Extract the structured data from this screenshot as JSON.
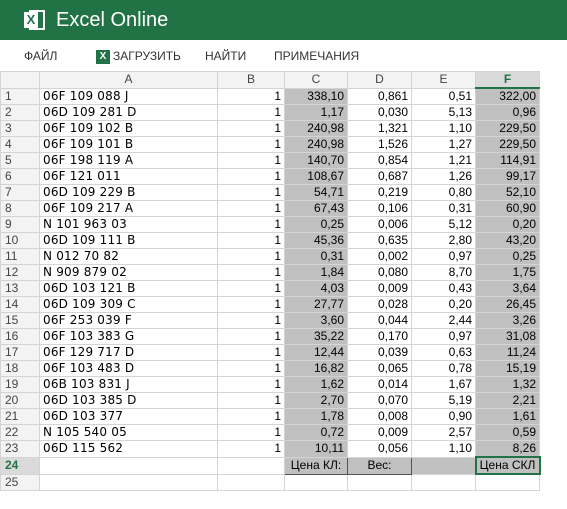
{
  "app": {
    "title": "Excel Online",
    "logo_letter": "X"
  },
  "ribbon": {
    "file": "ФАЙЛ",
    "download": "ЗАГРУЗИТЬ",
    "find": "НАЙТИ",
    "notes": "ПРИМЕЧАНИЯ"
  },
  "columns": [
    "A",
    "B",
    "C",
    "D",
    "E",
    "F"
  ],
  "selected_column": "F",
  "rows": [
    {
      "n": "1",
      "a": "06F 109 088 J",
      "b": "1",
      "c": "338,10",
      "d": "0,861",
      "e": "0,51",
      "f": "322,00"
    },
    {
      "n": "2",
      "a": "06D 109 281 D",
      "b": "1",
      "c": "1,17",
      "d": "0,030",
      "e": "5,13",
      "f": "0,96"
    },
    {
      "n": "3",
      "a": "06F 109 102 B",
      "b": "1",
      "c": "240,98",
      "d": "1,321",
      "e": "1,10",
      "f": "229,50"
    },
    {
      "n": "4",
      "a": "06F 109 101 B",
      "b": "1",
      "c": "240,98",
      "d": "1,526",
      "e": "1,27",
      "f": "229,50"
    },
    {
      "n": "5",
      "a": "06F 198 119 A",
      "b": "1",
      "c": "140,70",
      "d": "0,854",
      "e": "1,21",
      "f": "114,91"
    },
    {
      "n": "6",
      "a": "06F 121 011",
      "b": "1",
      "c": "108,67",
      "d": "0,687",
      "e": "1,26",
      "f": "99,17"
    },
    {
      "n": "7",
      "a": "06D 109 229 B",
      "b": "1",
      "c": "54,71",
      "d": "0,219",
      "e": "0,80",
      "f": "52,10"
    },
    {
      "n": "8",
      "a": "06F 109 217 A",
      "b": "1",
      "c": "67,43",
      "d": "0,106",
      "e": "0,31",
      "f": "60,90"
    },
    {
      "n": "9",
      "a": "N 101 963 03",
      "b": "1",
      "c": "0,25",
      "d": "0,006",
      "e": "5,12",
      "f": "0,20"
    },
    {
      "n": "10",
      "a": "06D 109 111 B",
      "b": "1",
      "c": "45,36",
      "d": "0,635",
      "e": "2,80",
      "f": "43,20"
    },
    {
      "n": "11",
      "a": "N 012 70 82",
      "b": "1",
      "c": "0,31",
      "d": "0,002",
      "e": "0,97",
      "f": "0,25"
    },
    {
      "n": "12",
      "a": "N 909 879 02",
      "b": "1",
      "c": "1,84",
      "d": "0,080",
      "e": "8,70",
      "f": "1,75"
    },
    {
      "n": "13",
      "a": "06D 103 121 B",
      "b": "1",
      "c": "4,03",
      "d": "0,009",
      "e": "0,43",
      "f": "3,64"
    },
    {
      "n": "14",
      "a": "06D 109 309 C",
      "b": "1",
      "c": "27,77",
      "d": "0,028",
      "e": "0,20",
      "f": "26,45"
    },
    {
      "n": "15",
      "a": "06F 253 039 F",
      "b": "1",
      "c": "3,60",
      "d": "0,044",
      "e": "2,44",
      "f": "3,26"
    },
    {
      "n": "16",
      "a": "06F 103 383 G",
      "b": "1",
      "c": "35,22",
      "d": "0,170",
      "e": "0,97",
      "f": "31,08"
    },
    {
      "n": "17",
      "a": "06F 129 717 D",
      "b": "1",
      "c": "12,44",
      "d": "0,039",
      "e": "0,63",
      "f": "11,24"
    },
    {
      "n": "18",
      "a": "06F 103 483 D",
      "b": "1",
      "c": "16,82",
      "d": "0,065",
      "e": "0,78",
      "f": "15,19"
    },
    {
      "n": "19",
      "a": "06B 103 831 J",
      "b": "1",
      "c": "1,62",
      "d": "0,014",
      "e": "1,67",
      "f": "1,32"
    },
    {
      "n": "20",
      "a": "06D 103 385 D",
      "b": "1",
      "c": "2,70",
      "d": "0,070",
      "e": "5,19",
      "f": "2,21"
    },
    {
      "n": "21",
      "a": "06D 103 377",
      "b": "1",
      "c": "1,78",
      "d": "0,008",
      "e": "0,90",
      "f": "1,61"
    },
    {
      "n": "22",
      "a": "N 105 540 05",
      "b": "1",
      "c": "0,72",
      "d": "0,009",
      "e": "2,57",
      "f": "0,59"
    },
    {
      "n": "23",
      "a": "06D 115 562",
      "b": "1",
      "c": "10,11",
      "d": "0,056",
      "e": "1,10",
      "f": "8,26"
    }
  ],
  "row24": {
    "n": "24",
    "c": "Цена КЛ:",
    "d": "Вес:",
    "f": "Цена СКЛ"
  },
  "row25": {
    "n": "25"
  },
  "colors": {
    "accent": "#217346",
    "gray_fill": "#c0c0c0"
  }
}
